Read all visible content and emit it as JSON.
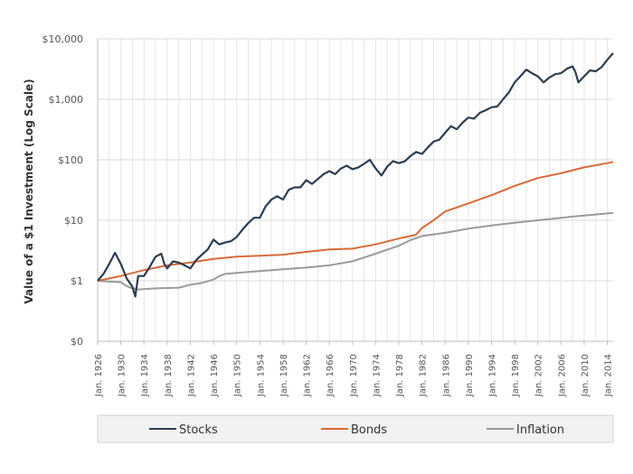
{
  "chart_data": {
    "type": "line",
    "ylabel": "Value of a $1 Investment (Log Scale)",
    "y_scale": "log",
    "y_ticks": [
      "$0",
      "$1",
      "$10",
      "$100",
      "$1,000",
      "$10,000"
    ],
    "x_ticks": [
      "Jan. 1926",
      "Jan. 1930",
      "Jan. 1934",
      "Jan. 1938",
      "Jan. 1942",
      "Jan. 1946",
      "Jan. 1950",
      "Jan. 1954",
      "Jan. 1958",
      "Jan. 1962",
      "Jan. 1966",
      "Jan. 1970",
      "Jan. 1974",
      "Jan. 1978",
      "Jan. 1982",
      "Jan. 1986",
      "Jan. 1990",
      "Jan. 1994",
      "Jan. 1998",
      "Jan. 2002",
      "Jan. 2006",
      "Jan. 2010",
      "Jan. 2014"
    ],
    "xlim": [
      1926,
      2015
    ],
    "grid": true,
    "legend_position": "bottom",
    "series": [
      {
        "name": "Stocks",
        "color": "#2d3e50",
        "points": [
          [
            1926,
            1.0
          ],
          [
            1927,
            1.3
          ],
          [
            1928,
            1.9
          ],
          [
            1929,
            2.9
          ],
          [
            1930,
            1.9
          ],
          [
            1931,
            1.1
          ],
          [
            1932,
            0.8
          ],
          [
            1932.5,
            0.55
          ],
          [
            1933,
            1.2
          ],
          [
            1934,
            1.2
          ],
          [
            1935,
            1.7
          ],
          [
            1936,
            2.5
          ],
          [
            1937,
            2.8
          ],
          [
            1937.5,
            1.9
          ],
          [
            1938,
            1.6
          ],
          [
            1939,
            2.1
          ],
          [
            1940,
            2.0
          ],
          [
            1941,
            1.8
          ],
          [
            1942,
            1.6
          ],
          [
            1943,
            2.2
          ],
          [
            1944,
            2.7
          ],
          [
            1945,
            3.3
          ],
          [
            1946,
            4.8
          ],
          [
            1947,
            4.0
          ],
          [
            1948,
            4.3
          ],
          [
            1949,
            4.5
          ],
          [
            1950,
            5.3
          ],
          [
            1951,
            7.0
          ],
          [
            1952,
            9.0
          ],
          [
            1953,
            11
          ],
          [
            1954,
            11
          ],
          [
            1955,
            17
          ],
          [
            1956,
            22
          ],
          [
            1957,
            25
          ],
          [
            1958,
            22
          ],
          [
            1959,
            32
          ],
          [
            1960,
            35
          ],
          [
            1961,
            35
          ],
          [
            1962,
            46
          ],
          [
            1963,
            40
          ],
          [
            1964,
            48
          ],
          [
            1965,
            58
          ],
          [
            1966,
            65
          ],
          [
            1967,
            58
          ],
          [
            1968,
            72
          ],
          [
            1969,
            80
          ],
          [
            1970,
            70
          ],
          [
            1971,
            75
          ],
          [
            1972,
            86
          ],
          [
            1973,
            100
          ],
          [
            1974,
            72
          ],
          [
            1975,
            55
          ],
          [
            1976,
            77
          ],
          [
            1977,
            95
          ],
          [
            1978,
            88
          ],
          [
            1979,
            94
          ],
          [
            1980,
            115
          ],
          [
            1981,
            135
          ],
          [
            1982,
            125
          ],
          [
            1983,
            160
          ],
          [
            1984,
            200
          ],
          [
            1985,
            215
          ],
          [
            1986,
            280
          ],
          [
            1987,
            360
          ],
          [
            1988,
            320
          ],
          [
            1989,
            410
          ],
          [
            1990,
            500
          ],
          [
            1991,
            480
          ],
          [
            1992,
            600
          ],
          [
            1993,
            660
          ],
          [
            1994,
            740
          ],
          [
            1995,
            760
          ],
          [
            1996,
            1000
          ],
          [
            1997,
            1300
          ],
          [
            1998,
            1900
          ],
          [
            1999,
            2400
          ],
          [
            2000,
            3100
          ],
          [
            2001,
            2700
          ],
          [
            2002,
            2400
          ],
          [
            2003,
            1900
          ],
          [
            2004,
            2300
          ],
          [
            2005,
            2600
          ],
          [
            2006,
            2700
          ],
          [
            2007,
            3200
          ],
          [
            2008,
            3500
          ],
          [
            2008.5,
            2800
          ],
          [
            2009,
            1900
          ],
          [
            2010,
            2400
          ],
          [
            2011,
            3000
          ],
          [
            2012,
            2900
          ],
          [
            2013,
            3400
          ],
          [
            2014,
            4500
          ],
          [
            2015,
            5800
          ]
        ]
      },
      {
        "name": "Bonds",
        "color": "#d96a3a",
        "points": [
          [
            1926,
            1.0
          ],
          [
            1930,
            1.2
          ],
          [
            1934,
            1.5
          ],
          [
            1938,
            1.8
          ],
          [
            1942,
            2.0
          ],
          [
            1946,
            2.3
          ],
          [
            1950,
            2.5
          ],
          [
            1954,
            2.6
          ],
          [
            1958,
            2.7
          ],
          [
            1962,
            3.0
          ],
          [
            1966,
            3.3
          ],
          [
            1970,
            3.4
          ],
          [
            1974,
            4.0
          ],
          [
            1978,
            5.0
          ],
          [
            1980,
            5.5
          ],
          [
            1981,
            5.8
          ],
          [
            1982,
            7.5
          ],
          [
            1984,
            10
          ],
          [
            1986,
            14
          ],
          [
            1990,
            19
          ],
          [
            1994,
            26
          ],
          [
            1998,
            37
          ],
          [
            2002,
            50
          ],
          [
            2006,
            60
          ],
          [
            2010,
            75
          ],
          [
            2014,
            88
          ],
          [
            2015,
            92
          ]
        ]
      },
      {
        "name": "Inflation",
        "color": "#9b9b9b",
        "points": [
          [
            1926,
            1.0
          ],
          [
            1928,
            0.97
          ],
          [
            1930,
            0.95
          ],
          [
            1931,
            0.82
          ],
          [
            1932,
            0.75
          ],
          [
            1933,
            0.72
          ],
          [
            1936,
            0.75
          ],
          [
            1940,
            0.77
          ],
          [
            1942,
            0.86
          ],
          [
            1944,
            0.92
          ],
          [
            1946,
            1.05
          ],
          [
            1947,
            1.2
          ],
          [
            1948,
            1.3
          ],
          [
            1950,
            1.35
          ],
          [
            1954,
            1.45
          ],
          [
            1958,
            1.55
          ],
          [
            1962,
            1.65
          ],
          [
            1966,
            1.8
          ],
          [
            1970,
            2.1
          ],
          [
            1974,
            2.8
          ],
          [
            1978,
            3.8
          ],
          [
            1980,
            4.7
          ],
          [
            1982,
            5.5
          ],
          [
            1986,
            6.2
          ],
          [
            1990,
            7.3
          ],
          [
            1994,
            8.2
          ],
          [
            1998,
            9.1
          ],
          [
            2002,
            10
          ],
          [
            2006,
            11
          ],
          [
            2010,
            12
          ],
          [
            2014,
            13
          ],
          [
            2015,
            13.3
          ]
        ]
      }
    ]
  }
}
